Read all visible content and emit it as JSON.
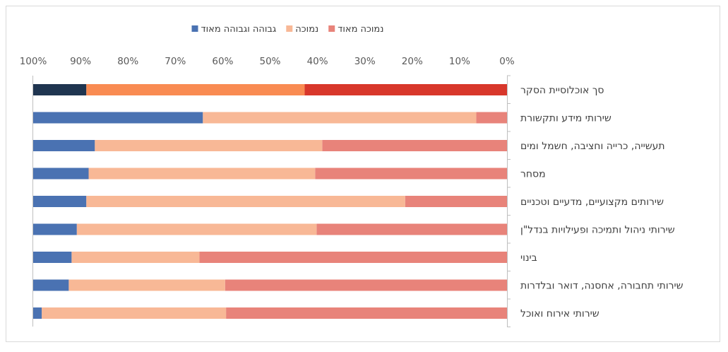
{
  "chart_data": {
    "type": "bar",
    "orientation": "horizontal",
    "stacked": "percent",
    "x_direction": "reversed",
    "xlim": [
      0,
      100
    ],
    "x_ticks": [
      "0%",
      "10%",
      "20%",
      "30%",
      "40%",
      "50%",
      "60%",
      "70%",
      "80%",
      "90%",
      "100%"
    ],
    "legend_position": "top",
    "legend": [
      "נמוכה מאוד",
      "נמוכה",
      "גבוהה וגבוהה מאוד"
    ],
    "categories": [
      "סך אוכלוסיית הסקר",
      "שירותי מידע ותקשורת",
      "תעשייה,  כרייה וחציבה, חשמל ומים",
      "מסחר",
      "שירותים מקצועיים,  מדעיים וטכניים",
      "שירותי ניהול ותמיכה ופעילויות בנדל\"ן",
      "בינוי",
      "שירותי תחבורה, אחסנה, דואר ובלדרות",
      "שירותי אירוח ואוכל"
    ],
    "series": [
      {
        "name": "נמוכה מאוד",
        "color": "#e8837a",
        "highlight_color": "#d8372b",
        "values": [
          42.7,
          6.5,
          39.0,
          40.5,
          21.5,
          40.2,
          64.9,
          59.5,
          59.3
        ]
      },
      {
        "name": "נמוכה",
        "color": "#f8b896",
        "highlight_color": "#f98b52",
        "values": [
          46.1,
          57.7,
          48.0,
          47.8,
          67.3,
          50.6,
          27.0,
          33.0,
          38.9
        ]
      },
      {
        "name": "גבוהה וגבוהה מאוד",
        "color": "#4a72b2",
        "highlight_color": "#1f3550",
        "values": [
          11.2,
          35.8,
          13.0,
          11.7,
          11.2,
          9.2,
          8.1,
          7.5,
          1.8
        ]
      }
    ],
    "highlighted_category_index": 0,
    "grid": false
  }
}
